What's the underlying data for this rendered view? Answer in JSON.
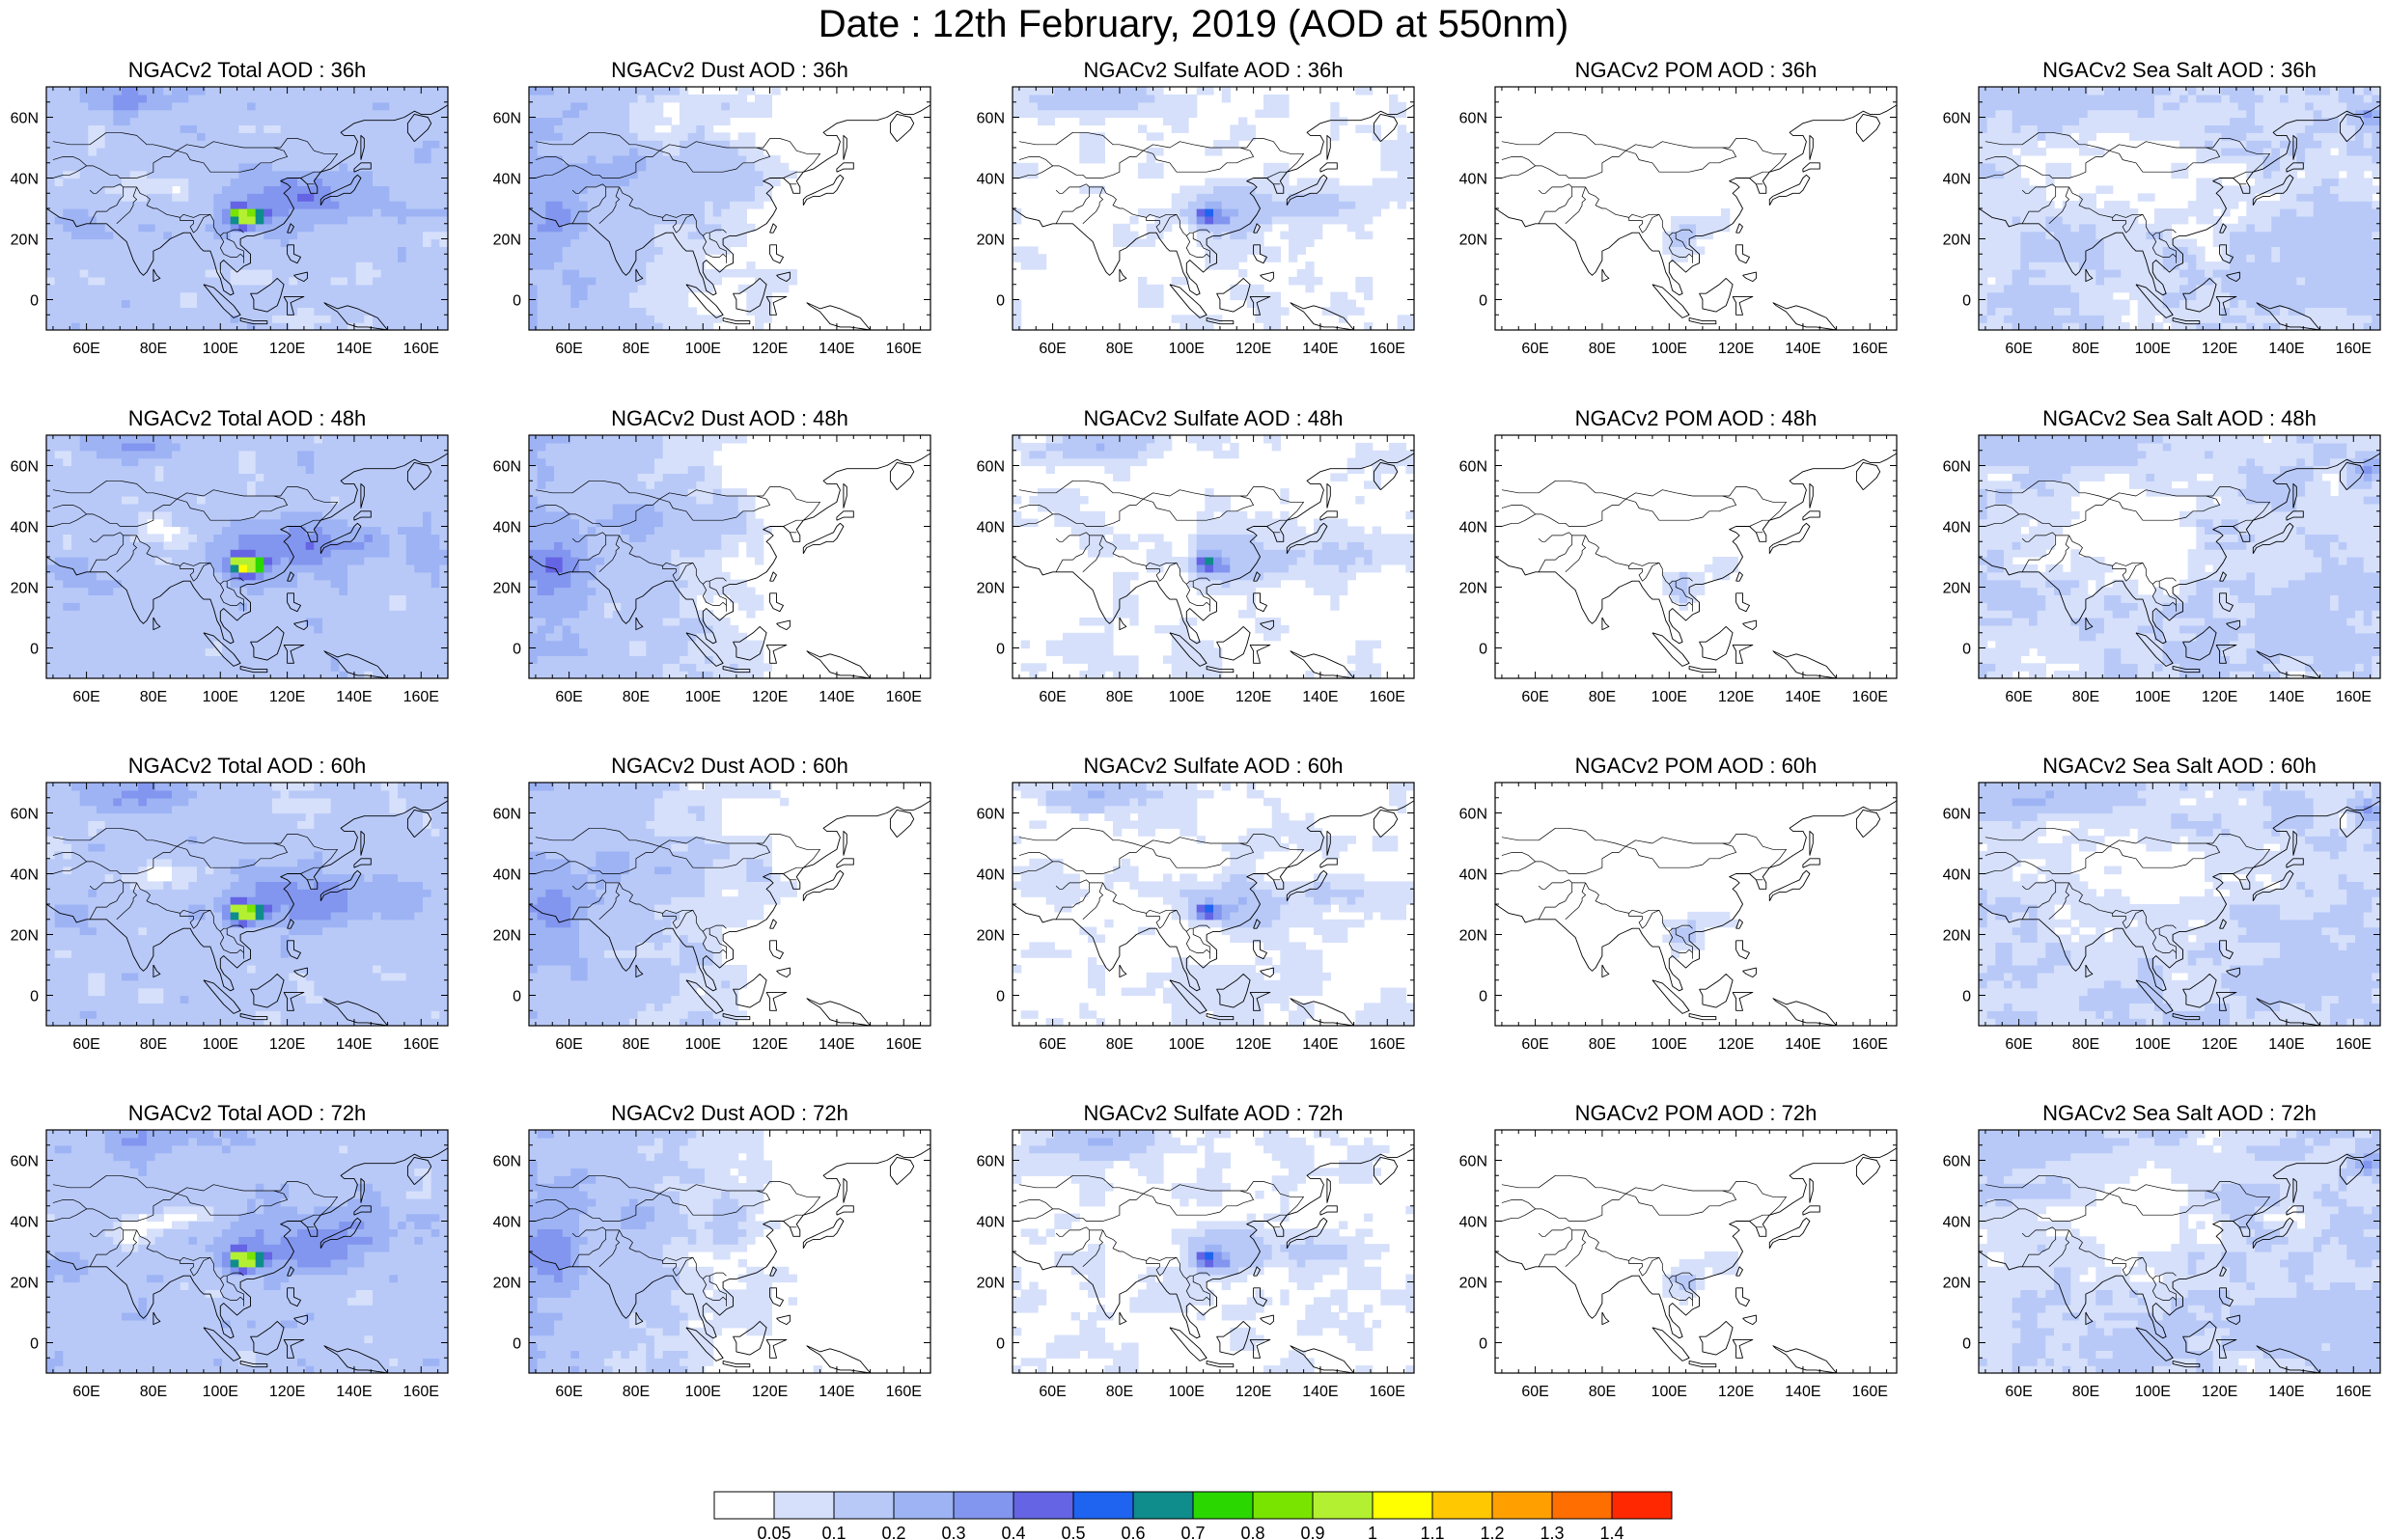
{
  "title": "Date : 12th February, 2019 (AOD at 550nm)",
  "panels": [
    [
      "NGACv2 Total AOD : 36h",
      "NGACv2 Dust AOD : 36h",
      "NGACv2 Sulfate AOD : 36h",
      "NGACv2 POM AOD : 36h",
      "NGACv2 Sea Salt AOD : 36h"
    ],
    [
      "NGACv2 Total AOD : 48h",
      "NGACv2 Dust AOD : 48h",
      "NGACv2 Sulfate AOD : 48h",
      "NGACv2 POM AOD : 48h",
      "NGACv2 Sea Salt AOD : 48h"
    ],
    [
      "NGACv2 Total AOD : 60h",
      "NGACv2 Dust AOD : 60h",
      "NGACv2 Sulfate AOD : 60h",
      "NGACv2 POM AOD : 60h",
      "NGACv2 Sea Salt AOD : 60h"
    ],
    [
      "NGACv2 Total AOD : 72h",
      "NGACv2 Dust AOD : 72h",
      "NGACv2 Sulfate AOD : 72h",
      "NGACv2 POM AOD : 72h",
      "NGACv2 Sea Salt  AOD : 72h"
    ]
  ],
  "map": {
    "lon_range": [
      48,
      168
    ],
    "lat_range": [
      -10,
      70
    ],
    "lon_ticks": [
      60,
      80,
      100,
      120,
      140,
      160
    ],
    "lon_tick_labels": [
      "60E",
      "80E",
      "100E",
      "120E",
      "140E",
      "160E"
    ],
    "lat_ticks": [
      0,
      20,
      40,
      60
    ],
    "lat_tick_labels": [
      "0",
      "20N",
      "40N",
      "60N"
    ]
  },
  "colorbar": {
    "labels": [
      "0.05",
      "0.1",
      "0.2",
      "0.3",
      "0.4",
      "0.5",
      "0.6",
      "0.7",
      "0.8",
      "0.9",
      "1",
      "1.1",
      "1.2",
      "1.3",
      "1.4"
    ],
    "colors": [
      "#ffffff",
      "#d6e0fb",
      "#b8c9f8",
      "#9db3f4",
      "#8296ef",
      "#6464e4",
      "#1e64f0",
      "#0f8c8c",
      "#2ad800",
      "#78e400",
      "#b4f032",
      "#ffff00",
      "#ffc800",
      "#ffa000",
      "#ff6e00",
      "#ff2800"
    ]
  },
  "chart_data": {
    "type": "heatmap",
    "variable": "AOD at 550nm",
    "date": "12th February, 2019",
    "rows_forecast_hours": [
      "36h",
      "48h",
      "60h",
      "72h"
    ],
    "columns_species": [
      "Total",
      "Dust",
      "Sulfate",
      "POM",
      "Sea Salt"
    ],
    "x_range": [
      48,
      168
    ],
    "y_range": [
      -10,
      70
    ],
    "levels": [
      0.05,
      0.1,
      0.2,
      0.3,
      0.4,
      0.5,
      0.6,
      0.7,
      0.8,
      0.9,
      1,
      1.1,
      1.2,
      1.3,
      1.4
    ],
    "grid": false
  }
}
